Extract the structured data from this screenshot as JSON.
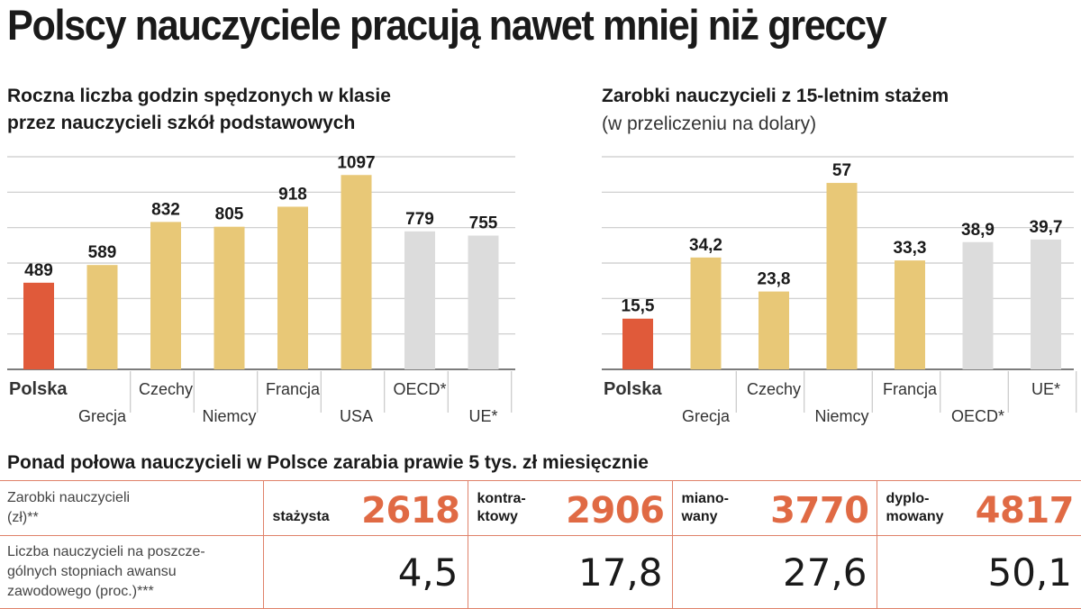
{
  "headline": "Polscy nauczyciele pracują nawet mniej niż greccy",
  "colors": {
    "highlight": "#e05a3a",
    "country": "#e8c877",
    "average": "#dcdcdc",
    "accent": "#e06a44"
  },
  "chart_data": [
    {
      "type": "bar",
      "title_line1": "Roczna liczba godzin spędzonych w klasie",
      "title_line2": "przez nauczycieli szkół podstawowych",
      "categories": [
        "Polska",
        "Grecja",
        "Czechy",
        "Niemcy",
        "Francja",
        "USA",
        "OECD*",
        "UE*"
      ],
      "values": [
        489,
        589,
        832,
        805,
        918,
        1097,
        779,
        755
      ],
      "value_labels": [
        "489",
        "589",
        "832",
        "805",
        "918",
        "1097",
        "779",
        "755"
      ],
      "kinds": [
        "highlight",
        "country",
        "country",
        "country",
        "country",
        "country",
        "average",
        "average"
      ],
      "ylim": [
        0,
        1200
      ],
      "grid": true
    },
    {
      "type": "bar",
      "title_line1": "Zarobki nauczycieli z 15-letnim stażem",
      "note": "(w przeliczeniu na dolary)",
      "categories": [
        "Polska",
        "Grecja",
        "Czechy",
        "Niemcy",
        "Francja",
        "OECD*",
        "UE*"
      ],
      "values": [
        15.5,
        34.2,
        23.8,
        57,
        33.3,
        38.9,
        39.7
      ],
      "value_labels": [
        "15,5",
        "34,2",
        "23,8",
        "57",
        "33,3",
        "38,9",
        "39,7"
      ],
      "kinds": [
        "highlight",
        "country",
        "country",
        "country",
        "country",
        "average",
        "average"
      ],
      "ylim": [
        0,
        65
      ],
      "grid": true
    }
  ],
  "table": {
    "title": "Ponad połowa nauczycieli w Polsce zarabia prawie 5 tys. zł miesięcznie",
    "salary_row_label_line1": "Zarobki nauczycieli",
    "salary_row_label_line2": "(zł)**",
    "share_row_label_line1": "Liczba nauczycieli na poszcze-",
    "share_row_label_line2": "gólnych stopniach awansu",
    "share_row_label_line3": "zawodowego (proc.)***",
    "levels": [
      {
        "label_line1": "",
        "label_line2": "stażysta",
        "salary": "2618",
        "share": "4,5"
      },
      {
        "label_line1": "kontra-",
        "label_line2": "ktowy",
        "salary": "2906",
        "share": "17,8"
      },
      {
        "label_line1": "miano-",
        "label_line2": "wany",
        "salary": "3770",
        "share": "27,6"
      },
      {
        "label_line1": "dyplo-",
        "label_line2": "mowany",
        "salary": "4817",
        "share": "50,1"
      }
    ]
  }
}
